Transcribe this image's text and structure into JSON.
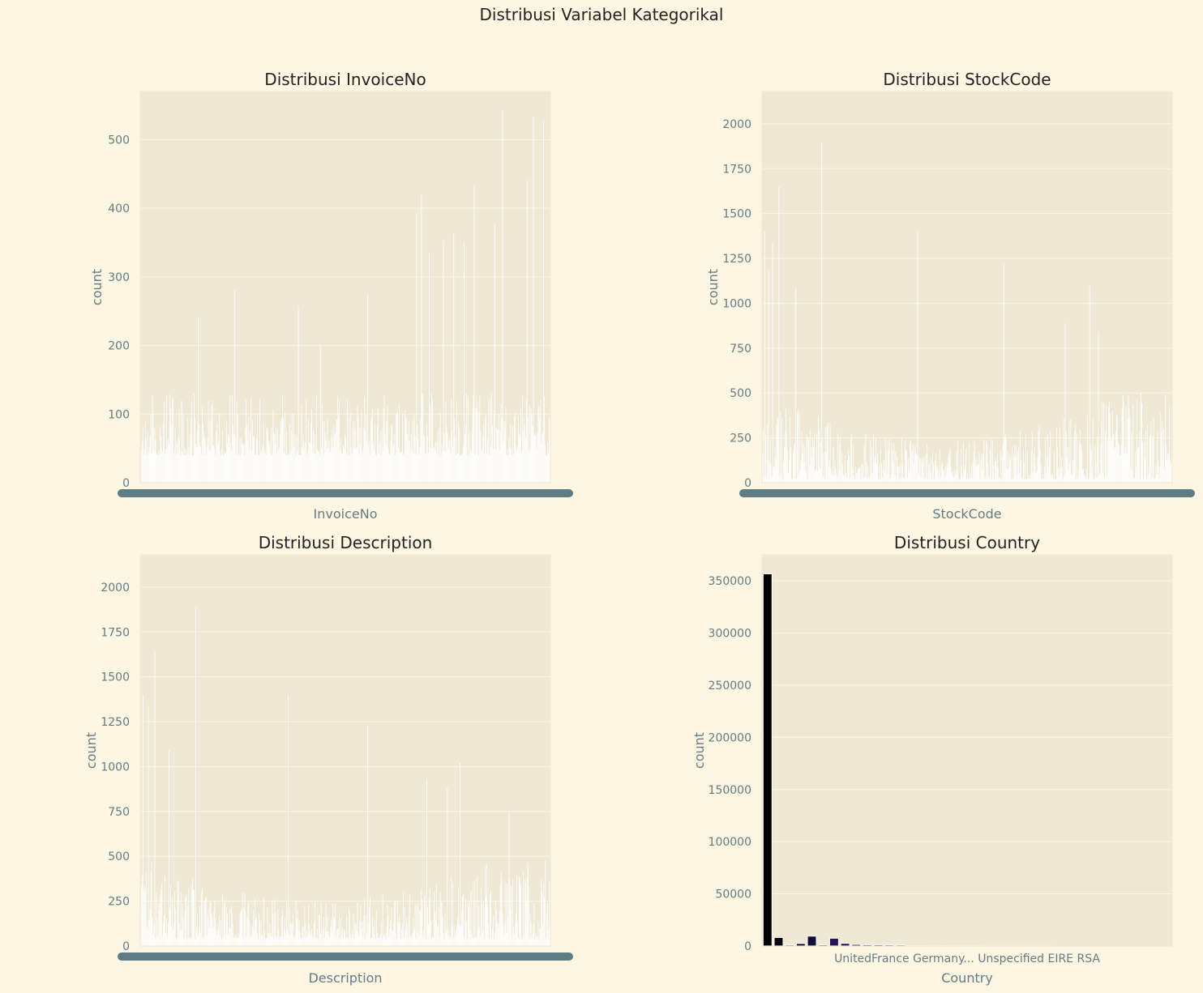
{
  "figure": {
    "title": "Distribusi Variabel Kategorikal",
    "background": "#fdf6e3",
    "axes_background": "#eee8d5",
    "grid_color": "#fdf6e3",
    "tick_color": "#657b83"
  },
  "chart_data": [
    {
      "type": "bar",
      "title": "Distribusi InvoiceNo",
      "xlabel": "InvoiceNo",
      "ylabel": "count",
      "ylim": [
        0,
        570
      ],
      "yticks": [
        0,
        100,
        200,
        300,
        400,
        500
      ],
      "grid": "horizontal",
      "bar_color": "#ffffff",
      "categories_note_overlapped": true,
      "x_tick_labels": [],
      "bar_count": 520,
      "values_summary": {
        "typical_range": [
          40,
          130
        ]
      },
      "peaks": [
        {
          "position": 0.14,
          "value": 242
        },
        {
          "position": 0.23,
          "value": 281
        },
        {
          "position": 0.385,
          "value": 257
        },
        {
          "position": 0.44,
          "value": 200
        },
        {
          "position": 0.555,
          "value": 275
        },
        {
          "position": 0.675,
          "value": 393
        },
        {
          "position": 0.685,
          "value": 420
        },
        {
          "position": 0.705,
          "value": 334
        },
        {
          "position": 0.74,
          "value": 353
        },
        {
          "position": 0.765,
          "value": 364
        },
        {
          "position": 0.79,
          "value": 351
        },
        {
          "position": 0.815,
          "value": 434
        },
        {
          "position": 0.865,
          "value": 377
        },
        {
          "position": 0.885,
          "value": 542
        },
        {
          "position": 0.945,
          "value": 441
        },
        {
          "position": 0.96,
          "value": 532
        },
        {
          "position": 0.985,
          "value": 528
        }
      ]
    },
    {
      "type": "bar",
      "title": "Distribusi StockCode",
      "xlabel": "StockCode",
      "ylabel": "count",
      "ylim": [
        0,
        2180
      ],
      "yticks": [
        0,
        250,
        500,
        750,
        1000,
        1250,
        1500,
        1750,
        2000
      ],
      "grid": "horizontal",
      "bar_color": "#ffffff",
      "x_tick_labels": [],
      "bar_count": 520,
      "values_summary": {
        "typical_range": [
          20,
          500
        ]
      },
      "peaks": [
        {
          "position": 0.005,
          "value": 1400
        },
        {
          "position": 0.015,
          "value": 1190
        },
        {
          "position": 0.025,
          "value": 1340
        },
        {
          "position": 0.04,
          "value": 1650
        },
        {
          "position": 0.08,
          "value": 1090
        },
        {
          "position": 0.145,
          "value": 1890
        },
        {
          "position": 0.38,
          "value": 1400
        },
        {
          "position": 0.59,
          "value": 1225
        },
        {
          "position": 0.74,
          "value": 890
        },
        {
          "position": 0.8,
          "value": 1100
        },
        {
          "position": 0.82,
          "value": 840
        },
        {
          "position": 0.98,
          "value": 300
        }
      ]
    },
    {
      "type": "bar",
      "title": "Distribusi Description",
      "xlabel": "Description",
      "ylabel": "count",
      "ylim": [
        0,
        2180
      ],
      "yticks": [
        0,
        250,
        500,
        750,
        1000,
        1250,
        1500,
        1750,
        2000
      ],
      "grid": "horizontal",
      "bar_color": "#ffffff",
      "x_tick_labels": [],
      "bar_count": 520,
      "values_summary": {
        "typical_range": [
          40,
          500
        ]
      },
      "peaks": [
        {
          "position": 0.005,
          "value": 1400
        },
        {
          "position": 0.02,
          "value": 1340
        },
        {
          "position": 0.035,
          "value": 1650
        },
        {
          "position": 0.07,
          "value": 1090
        },
        {
          "position": 0.135,
          "value": 1890
        },
        {
          "position": 0.36,
          "value": 1400
        },
        {
          "position": 0.555,
          "value": 1225
        },
        {
          "position": 0.7,
          "value": 930
        },
        {
          "position": 0.75,
          "value": 880
        },
        {
          "position": 0.78,
          "value": 1020
        },
        {
          "position": 0.9,
          "value": 740
        },
        {
          "position": 0.98,
          "value": 310
        }
      ]
    },
    {
      "type": "bar",
      "title": "Distribusi Country",
      "xlabel": "Country",
      "ylabel": "count",
      "ylim": [
        0,
        375000
      ],
      "yticks": [
        0,
        50000,
        100000,
        150000,
        200000,
        250000,
        300000,
        350000
      ],
      "grid": "horizontal",
      "x_tick_labels_overlapped": "UnitedFrance Germany... Unspecified EIRE RSA",
      "bars": [
        {
          "value": 356728,
          "color": "#000004"
        },
        {
          "value": 8196,
          "color": "#02020e"
        },
        {
          "value": 1000,
          "color": "#06051a"
        },
        {
          "value": 2359,
          "color": "#0d0a28"
        },
        {
          "value": 9480,
          "color": "#140e36"
        },
        {
          "value": 1100,
          "color": "#1b1044"
        },
        {
          "value": 7480,
          "color": "#251255"
        },
        {
          "value": 2533,
          "color": "#2d1160"
        },
        {
          "value": 1500,
          "color": "#37126b"
        },
        {
          "value": 1200,
          "color": "#42166e"
        },
        {
          "value": 1200,
          "color": "#4f1a72"
        },
        {
          "value": 1100,
          "color": "#5a1e75"
        },
        {
          "value": 1000,
          "color": "#662178"
        },
        {
          "value": 400,
          "color": "#72247b"
        },
        {
          "value": 350,
          "color": "#7e2880"
        },
        {
          "value": 300,
          "color": "#892b80"
        },
        {
          "value": 250,
          "color": "#962f82"
        },
        {
          "value": 220,
          "color": "#a23282"
        },
        {
          "value": 200,
          "color": "#af3581"
        },
        {
          "value": 180,
          "color": "#bc397f"
        },
        {
          "value": 160,
          "color": "#c83e7b"
        },
        {
          "value": 150,
          "color": "#d44577"
        },
        {
          "value": 140,
          "color": "#df4c72"
        },
        {
          "value": 120,
          "color": "#e9566e"
        },
        {
          "value": 110,
          "color": "#f0626b"
        },
        {
          "value": 100,
          "color": "#f6716a"
        },
        {
          "value": 90,
          "color": "#fa806e"
        },
        {
          "value": 80,
          "color": "#fc8f75"
        },
        {
          "value": 70,
          "color": "#fe9f7e"
        },
        {
          "value": 60,
          "color": "#feae88"
        },
        {
          "value": 55,
          "color": "#febd93"
        },
        {
          "value": 50,
          "color": "#feca9f"
        },
        {
          "value": 45,
          "color": "#fdd9ae"
        },
        {
          "value": 40,
          "color": "#fce6be"
        },
        {
          "value": 35,
          "color": "#fcf1cd"
        },
        {
          "value": 30,
          "color": "#fbf8de"
        },
        {
          "value": 25,
          "color": "#fcfdbf"
        }
      ]
    }
  ]
}
